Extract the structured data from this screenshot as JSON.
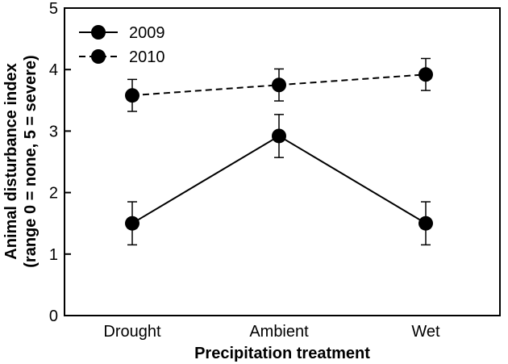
{
  "chart_data": {
    "type": "line",
    "categories": [
      "Drought",
      "Ambient",
      "Wet"
    ],
    "xlabel": "Precipitation treatment",
    "ylabel_line1": "Animal disturbance index",
    "ylabel_line2": "(range 0 = none, 5 = severe)",
    "ylim": [
      0,
      5
    ],
    "yticks": [
      "0",
      "1",
      "2",
      "3",
      "4",
      "5"
    ],
    "grid": false,
    "legend_position": "top-left",
    "series": [
      {
        "name": "2009",
        "line_style": "solid",
        "values": [
          1.5,
          2.92,
          1.5
        ],
        "errors": [
          0.35,
          0.35,
          0.35
        ]
      },
      {
        "name": "2010",
        "line_style": "dashed",
        "values": [
          3.58,
          3.75,
          3.92
        ],
        "errors": [
          0.26,
          0.26,
          0.26
        ]
      }
    ],
    "marker_color": "#000000"
  }
}
